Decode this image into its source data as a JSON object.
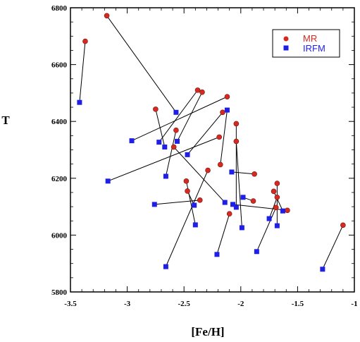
{
  "chart_data": {
    "type": "scatter",
    "xlabel": "[Fe/H]",
    "ylabel": "T",
    "xlim": [
      -3.5,
      -1
    ],
    "ylim": [
      5800,
      6800
    ],
    "xticks": [
      -3.5,
      -3,
      -2.5,
      -2,
      -1.5,
      -1
    ],
    "yticks": [
      5800,
      6000,
      6200,
      6400,
      6600,
      6800
    ],
    "xtick_labels": [
      "-3.5",
      "-3",
      "-2.5",
      "-2",
      "-1.5",
      "-1"
    ],
    "ytick_labels": [
      "5800",
      "6000",
      "6200",
      "6400",
      "6600",
      "6800"
    ],
    "grid": false,
    "legend_position": "top-right",
    "series": [
      {
        "name": "MR",
        "color": "#d42a20",
        "marker": "circle",
        "points": [
          [
            -3.37,
            6682
          ],
          [
            -3.18,
            6772
          ],
          [
            -2.38,
            6510
          ],
          [
            -2.34,
            6503
          ],
          [
            -2.12,
            6487
          ],
          [
            -2.75,
            6443
          ],
          [
            -2.16,
            6432
          ],
          [
            -2.04,
            6392
          ],
          [
            -2.57,
            6369
          ],
          [
            -2.59,
            6310
          ],
          [
            -2.04,
            6330
          ],
          [
            -2.19,
            6345
          ],
          [
            -2.18,
            6248
          ],
          [
            -2.29,
            6228
          ],
          [
            -1.88,
            6215
          ],
          [
            -2.48,
            6190
          ],
          [
            -1.68,
            6182
          ],
          [
            -2.47,
            6155
          ],
          [
            -1.71,
            6154
          ],
          [
            -1.68,
            6133
          ],
          [
            -2.36,
            6123
          ],
          [
            -1.89,
            6120
          ],
          [
            -1.59,
            6087
          ],
          [
            -2.1,
            6075
          ],
          [
            -1.69,
            6097
          ],
          [
            -1.1,
            6035
          ]
        ]
      },
      {
        "name": "IRFM",
        "color": "#1f1fe6",
        "marker": "square",
        "points": [
          [
            -3.42,
            6467
          ],
          [
            -2.57,
            6432
          ],
          [
            -2.12,
            6440
          ],
          [
            -2.96,
            6332
          ],
          [
            -2.72,
            6327
          ],
          [
            -2.56,
            6330
          ],
          [
            -2.67,
            6310
          ],
          [
            -2.47,
            6283
          ],
          [
            -2.08,
            6222
          ],
          [
            -2.66,
            6207
          ],
          [
            -3.17,
            6190
          ],
          [
            -1.98,
            6133
          ],
          [
            -2.14,
            6115
          ],
          [
            -2.07,
            6108
          ],
          [
            -2.04,
            6098
          ],
          [
            -2.76,
            6108
          ],
          [
            -2.41,
            6105
          ],
          [
            -1.63,
            6085
          ],
          [
            -1.75,
            6058
          ],
          [
            -2.4,
            6036
          ],
          [
            -1.68,
            6033
          ],
          [
            -1.99,
            6026
          ],
          [
            -1.86,
            5942
          ],
          [
            -2.21,
            5932
          ],
          [
            -2.66,
            5889
          ],
          [
            -1.28,
            5880
          ]
        ]
      }
    ],
    "links": [
      [
        [
          -3.37,
          6682
        ],
        [
          -3.42,
          6467
        ]
      ],
      [
        [
          -3.18,
          6772
        ],
        [
          -2.57,
          6432
        ]
      ],
      [
        [
          -2.38,
          6510
        ],
        [
          -2.72,
          6327
        ]
      ],
      [
        [
          -2.34,
          6503
        ],
        [
          -2.56,
          6330
        ]
      ],
      [
        [
          -2.12,
          6487
        ],
        [
          -2.96,
          6332
        ]
      ],
      [
        [
          -2.75,
          6443
        ],
        [
          -2.67,
          6310
        ]
      ],
      [
        [
          -2.16,
          6432
        ],
        [
          -2.47,
          6283
        ]
      ],
      [
        [
          -2.12,
          6440
        ],
        [
          -2.18,
          6248
        ]
      ],
      [
        [
          -2.04,
          6392
        ],
        [
          -2.04,
          6098
        ]
      ],
      [
        [
          -2.57,
          6369
        ],
        [
          -2.66,
          6207
        ]
      ],
      [
        [
          -2.59,
          6310
        ],
        [
          -2.14,
          6115
        ]
      ],
      [
        [
          -2.04,
          6330
        ],
        [
          -1.99,
          6026
        ]
      ],
      [
        [
          -2.19,
          6345
        ],
        [
          -3.17,
          6190
        ]
      ],
      [
        [
          -2.08,
          6222
        ],
        [
          -1.88,
          6215
        ]
      ],
      [
        [
          -2.29,
          6228
        ],
        [
          -2.66,
          5889
        ]
      ],
      [
        [
          -2.48,
          6190
        ],
        [
          -2.4,
          6036
        ]
      ],
      [
        [
          -1.68,
          6182
        ],
        [
          -1.68,
          6033
        ]
      ],
      [
        [
          -2.47,
          6155
        ],
        [
          -2.41,
          6105
        ]
      ],
      [
        [
          -1.71,
          6154
        ],
        [
          -1.63,
          6085
        ]
      ],
      [
        [
          -1.68,
          6133
        ],
        [
          -1.75,
          6058
        ]
      ],
      [
        [
          -2.36,
          6123
        ],
        [
          -2.76,
          6108
        ]
      ],
      [
        [
          -1.98,
          6133
        ],
        [
          -1.89,
          6120
        ]
      ],
      [
        [
          -2.07,
          6108
        ],
        [
          -1.59,
          6087
        ]
      ],
      [
        [
          -2.1,
          6075
        ],
        [
          -2.21,
          5932
        ]
      ],
      [
        [
          -1.69,
          6097
        ],
        [
          -1.86,
          5942
        ]
      ],
      [
        [
          -1.1,
          6035
        ],
        [
          -1.28,
          5880
        ]
      ]
    ]
  }
}
